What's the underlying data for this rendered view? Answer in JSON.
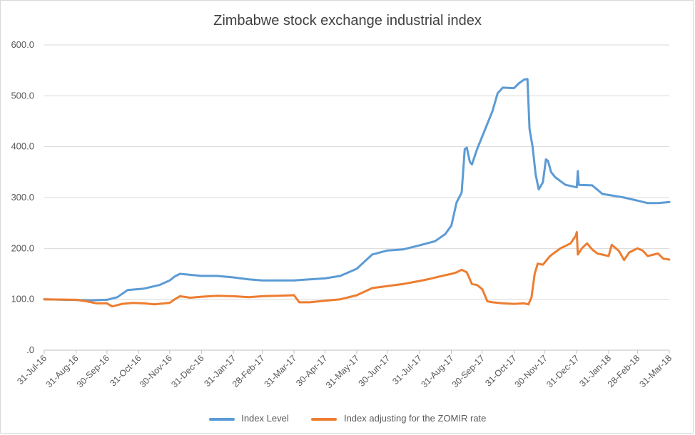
{
  "chart_data": {
    "type": "line",
    "title": "Zimbabwe stock exchange industrial index",
    "xlabel": "",
    "ylabel": "",
    "ylim": [
      0,
      600
    ],
    "yticks": [
      ".0",
      "100.0",
      "200.0",
      "300.0",
      "400.0",
      "500.0",
      "600.0"
    ],
    "ytick_values": [
      0,
      100,
      200,
      300,
      400,
      500,
      600
    ],
    "xlim": [
      "2016-07-31",
      "2018-03-31"
    ],
    "xticks": [
      "31-Jul-16",
      "31-Aug-16",
      "30-Sep-16",
      "31-Oct-16",
      "30-Nov-16",
      "31-Dec-16",
      "31-Jan-17",
      "28-Feb-17",
      "31-Mar-17",
      "30-Apr-17",
      "31-May-17",
      "30-Jun-17",
      "31-Jul-17",
      "31-Aug-17",
      "30-Sep-17",
      "31-Oct-17",
      "30-Nov-17",
      "31-Dec-17",
      "31-Jan-18",
      "28-Feb-18",
      "31-Mar-18"
    ],
    "xtick_dates": [
      "2016-07-31",
      "2016-08-31",
      "2016-09-30",
      "2016-10-31",
      "2016-11-30",
      "2016-12-31",
      "2017-01-31",
      "2017-02-28",
      "2017-03-31",
      "2017-04-30",
      "2017-05-31",
      "2017-06-30",
      "2017-07-31",
      "2017-08-31",
      "2017-09-30",
      "2017-10-31",
      "2017-11-30",
      "2017-12-31",
      "2018-01-31",
      "2018-02-28",
      "2018-03-31"
    ],
    "grid": true,
    "legend_position": "bottom",
    "series": [
      {
        "name": "Index Level",
        "color": "#5b9bd5",
        "points": [
          [
            "2016-07-31",
            100
          ],
          [
            "2016-08-20",
            99
          ],
          [
            "2016-09-15",
            98
          ],
          [
            "2016-09-30",
            99
          ],
          [
            "2016-10-10",
            104
          ],
          [
            "2016-10-20",
            118
          ],
          [
            "2016-11-05",
            121
          ],
          [
            "2016-11-20",
            128
          ],
          [
            "2016-11-30",
            137
          ],
          [
            "2016-12-05",
            145
          ],
          [
            "2016-12-10",
            150
          ],
          [
            "2016-12-20",
            148
          ],
          [
            "2016-12-31",
            146
          ],
          [
            "2017-01-15",
            146
          ],
          [
            "2017-01-31",
            143
          ],
          [
            "2017-02-15",
            139
          ],
          [
            "2017-02-28",
            137
          ],
          [
            "2017-03-31",
            137
          ],
          [
            "2017-04-15",
            139
          ],
          [
            "2017-04-30",
            141
          ],
          [
            "2017-05-15",
            146
          ],
          [
            "2017-05-31",
            160
          ],
          [
            "2017-06-15",
            188
          ],
          [
            "2017-06-30",
            196
          ],
          [
            "2017-07-15",
            198
          ],
          [
            "2017-07-31",
            206
          ],
          [
            "2017-08-15",
            214
          ],
          [
            "2017-08-25",
            228
          ],
          [
            "2017-08-31",
            245
          ],
          [
            "2017-09-05",
            290
          ],
          [
            "2017-09-10",
            310
          ],
          [
            "2017-09-13",
            395
          ],
          [
            "2017-09-15",
            398
          ],
          [
            "2017-09-18",
            370
          ],
          [
            "2017-09-20",
            365
          ],
          [
            "2017-09-25",
            395
          ],
          [
            "2017-09-30",
            420
          ],
          [
            "2017-10-05",
            445
          ],
          [
            "2017-10-10",
            470
          ],
          [
            "2017-10-15",
            505
          ],
          [
            "2017-10-20",
            516
          ],
          [
            "2017-10-31",
            515
          ],
          [
            "2017-11-05",
            525
          ],
          [
            "2017-11-10",
            532
          ],
          [
            "2017-11-13",
            533
          ],
          [
            "2017-11-15",
            435
          ],
          [
            "2017-11-18",
            400
          ],
          [
            "2017-11-21",
            345
          ],
          [
            "2017-11-24",
            316
          ],
          [
            "2017-11-28",
            330
          ],
          [
            "2017-12-01",
            375
          ],
          [
            "2017-12-03",
            372
          ],
          [
            "2017-12-06",
            350
          ],
          [
            "2017-12-10",
            340
          ],
          [
            "2017-12-20",
            325
          ],
          [
            "2017-12-31",
            320
          ],
          [
            "2018-01-01",
            352
          ],
          [
            "2018-01-02",
            325
          ],
          [
            "2018-01-15",
            324
          ],
          [
            "2018-01-25",
            307
          ],
          [
            "2018-01-31",
            305
          ],
          [
            "2018-02-15",
            300
          ],
          [
            "2018-02-28",
            294
          ],
          [
            "2018-03-10",
            289
          ],
          [
            "2018-03-20",
            289
          ],
          [
            "2018-03-31",
            291
          ]
        ]
      },
      {
        "name": "Index adjusting for the ZOMIR rate",
        "color": "#ed7d31",
        "points": [
          [
            "2016-07-31",
            100
          ],
          [
            "2016-08-31",
            99
          ],
          [
            "2016-09-10",
            96
          ],
          [
            "2016-09-20",
            92
          ],
          [
            "2016-09-30",
            92
          ],
          [
            "2016-10-05",
            86
          ],
          [
            "2016-10-15",
            91
          ],
          [
            "2016-10-25",
            93
          ],
          [
            "2016-11-05",
            92
          ],
          [
            "2016-11-15",
            90
          ],
          [
            "2016-11-30",
            93
          ],
          [
            "2016-12-05",
            100
          ],
          [
            "2016-12-10",
            106
          ],
          [
            "2016-12-20",
            103
          ],
          [
            "2016-12-31",
            105
          ],
          [
            "2017-01-15",
            107
          ],
          [
            "2017-01-31",
            106
          ],
          [
            "2017-02-15",
            104
          ],
          [
            "2017-02-28",
            106
          ],
          [
            "2017-03-15",
            107
          ],
          [
            "2017-03-31",
            108
          ],
          [
            "2017-04-05",
            94
          ],
          [
            "2017-04-15",
            94
          ],
          [
            "2017-04-30",
            97
          ],
          [
            "2017-05-15",
            100
          ],
          [
            "2017-05-31",
            108
          ],
          [
            "2017-06-15",
            122
          ],
          [
            "2017-06-30",
            126
          ],
          [
            "2017-07-15",
            130
          ],
          [
            "2017-07-31",
            136
          ],
          [
            "2017-08-10",
            140
          ],
          [
            "2017-08-20",
            145
          ],
          [
            "2017-08-31",
            150
          ],
          [
            "2017-09-05",
            153
          ],
          [
            "2017-09-10",
            158
          ],
          [
            "2017-09-15",
            153
          ],
          [
            "2017-09-20",
            130
          ],
          [
            "2017-09-25",
            128
          ],
          [
            "2017-09-30",
            120
          ],
          [
            "2017-10-05",
            96
          ],
          [
            "2017-10-10",
            94
          ],
          [
            "2017-10-20",
            92
          ],
          [
            "2017-10-31",
            91
          ],
          [
            "2017-11-10",
            92
          ],
          [
            "2017-11-14",
            90
          ],
          [
            "2017-11-17",
            104
          ],
          [
            "2017-11-20",
            150
          ],
          [
            "2017-11-23",
            170
          ],
          [
            "2017-11-28",
            168
          ],
          [
            "2017-12-05",
            185
          ],
          [
            "2017-12-15",
            200
          ],
          [
            "2017-12-20",
            205
          ],
          [
            "2017-12-25",
            210
          ],
          [
            "2017-12-30",
            225
          ],
          [
            "2017-12-31",
            232
          ],
          [
            "2018-01-01",
            188
          ],
          [
            "2018-01-05",
            200
          ],
          [
            "2018-01-10",
            210
          ],
          [
            "2018-01-15",
            198
          ],
          [
            "2018-01-20",
            190
          ],
          [
            "2018-01-31",
            185
          ],
          [
            "2018-02-03",
            207
          ],
          [
            "2018-02-10",
            195
          ],
          [
            "2018-02-15",
            177
          ],
          [
            "2018-02-20",
            192
          ],
          [
            "2018-02-28",
            200
          ],
          [
            "2018-03-05",
            196
          ],
          [
            "2018-03-10",
            185
          ],
          [
            "2018-03-20",
            190
          ],
          [
            "2018-03-25",
            180
          ],
          [
            "2018-03-31",
            178
          ]
        ]
      }
    ]
  }
}
